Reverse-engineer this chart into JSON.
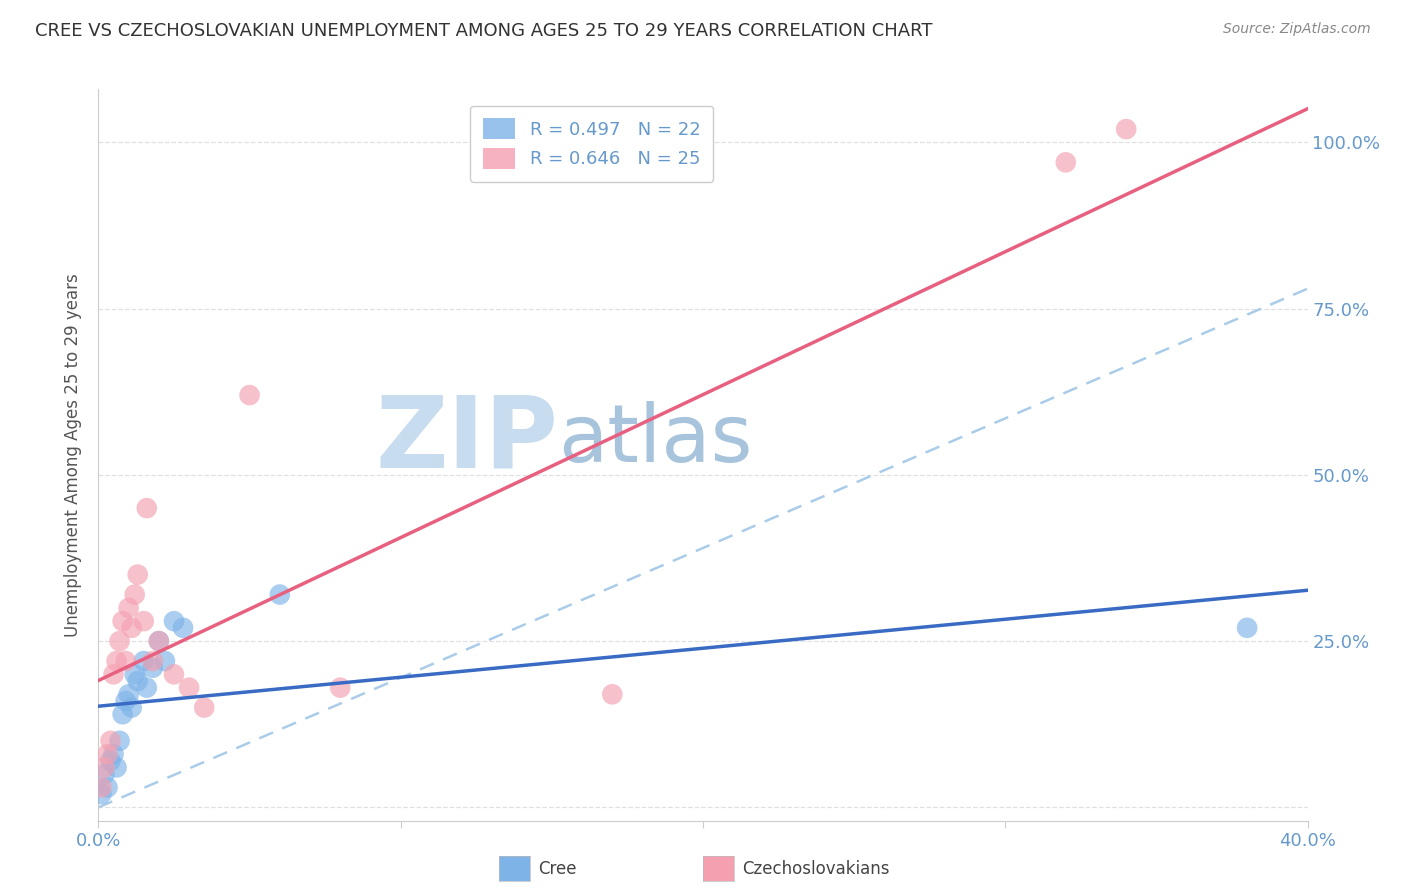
{
  "title": "CREE VS CZECHOSLOVAKIAN UNEMPLOYMENT AMONG AGES 25 TO 29 YEARS CORRELATION CHART",
  "source": "Source: ZipAtlas.com",
  "ylabel": "Unemployment Among Ages 25 to 29 years",
  "xlim": [
    0.0,
    0.4
  ],
  "ylim": [
    -0.02,
    1.08
  ],
  "cree_color": "#7EB3E8",
  "czech_color": "#F4A0B0",
  "cree_line_color": "#3A6BC4",
  "czech_line_color": "#E86080",
  "dash_line_color": "#AACCE8",
  "legend_label_cree": "R = 0.497   N = 22",
  "legend_label_czech": "R = 0.646   N = 25",
  "watermark_zip": "ZIP",
  "watermark_atlas": "atlas",
  "watermark_color_zip": "#C8DCF0",
  "watermark_color_atlas": "#A8C4DC",
  "cree_x": [
    0.001,
    0.002,
    0.003,
    0.004,
    0.005,
    0.006,
    0.007,
    0.008,
    0.009,
    0.01,
    0.011,
    0.012,
    0.013,
    0.015,
    0.016,
    0.018,
    0.02,
    0.022,
    0.025,
    0.028,
    0.06,
    0.38
  ],
  "cree_y": [
    0.02,
    0.05,
    0.03,
    0.07,
    0.08,
    0.06,
    0.1,
    0.14,
    0.16,
    0.17,
    0.15,
    0.2,
    0.19,
    0.22,
    0.18,
    0.21,
    0.25,
    0.22,
    0.28,
    0.27,
    0.32,
    0.27
  ],
  "czech_x": [
    0.001,
    0.002,
    0.003,
    0.004,
    0.005,
    0.006,
    0.007,
    0.008,
    0.009,
    0.01,
    0.011,
    0.012,
    0.013,
    0.015,
    0.016,
    0.018,
    0.02,
    0.025,
    0.03,
    0.035,
    0.05,
    0.08,
    0.17,
    0.32,
    0.34
  ],
  "czech_y": [
    0.03,
    0.06,
    0.08,
    0.1,
    0.2,
    0.22,
    0.25,
    0.28,
    0.22,
    0.3,
    0.27,
    0.32,
    0.35,
    0.28,
    0.45,
    0.22,
    0.25,
    0.2,
    0.18,
    0.15,
    0.62,
    0.18,
    0.17,
    0.97,
    1.02
  ],
  "background_color": "#ffffff",
  "grid_color": "#e0e0e0",
  "title_color": "#333333",
  "tick_color": "#6699CC",
  "ylabel_color": "#555555"
}
